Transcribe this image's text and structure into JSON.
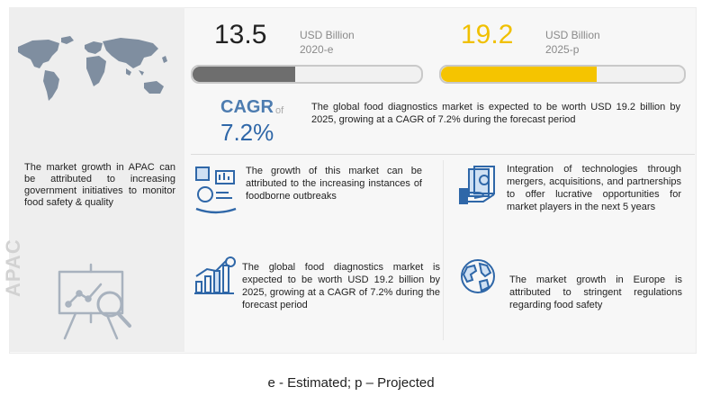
{
  "values": {
    "v2020": {
      "value": "13.5",
      "unit": "USD Billion",
      "year": "2020-e",
      "bar_fill": 0.45,
      "color": "#6e6e6e"
    },
    "v2025": {
      "value": "19.2",
      "unit": "USD Billion",
      "year": "2025-p",
      "bar_fill": 0.64,
      "color": "#f5c400"
    }
  },
  "cagr": {
    "label": "CAGR",
    "of": "of",
    "value": "7.2%",
    "text": "The global food diagnostics market is expected to be worth USD 19.2 billion by 2025, growing at a CAGR of 7.2% during the forecast period"
  },
  "apac": {
    "region": "APAC",
    "text": "The market growth in APAC can be attributed to increasing government initiatives to monitor food safety & quality"
  },
  "items": {
    "outbreaks": {
      "icon": "food-safety-icon",
      "text": "The growth of this market can be attributed to the increasing instances of foodborne outbreaks"
    },
    "integration": {
      "icon": "money-hand-icon",
      "text": "Integration of technologies through mergers, acquisitions, and partnerships to offer lucrative opportunities for market players in the next 5 years"
    },
    "growth": {
      "icon": "growth-chart-icon",
      "text": "The global food diagnostics market is expected to be worth USD 19.2 billion by 2025, growing at a CAGR of 7.2% during the forecast period"
    },
    "europe": {
      "icon": "globe-icon",
      "text": "The market growth in Europe is attributed to stringent regulations regarding food safety"
    }
  },
  "footnote": "e - Estimated; p – Projected",
  "colors": {
    "accent_blue": "#2f67a8",
    "accent_yellow": "#f5c400",
    "dark_bar": "#6e6e6e"
  }
}
